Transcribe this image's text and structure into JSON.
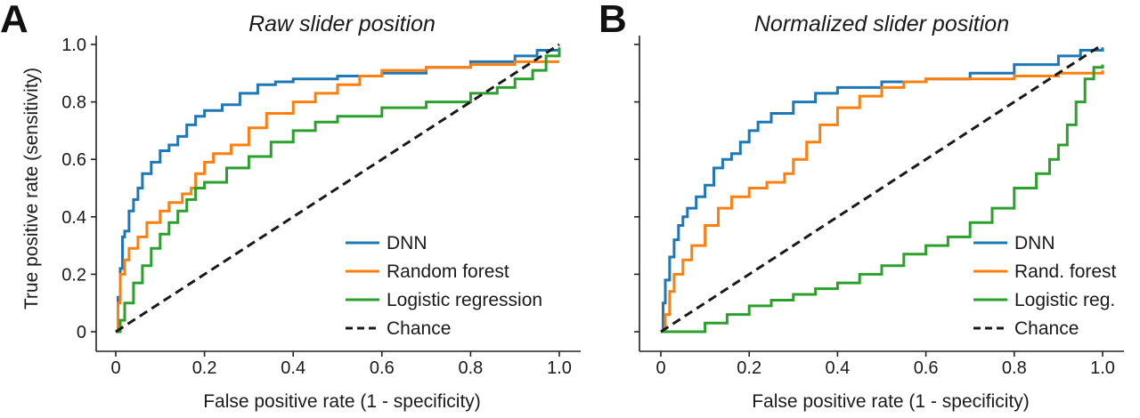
{
  "chart_data": [
    {
      "type": "line",
      "panel_letter": "A",
      "title": "Raw slider position",
      "xlabel": "False positive rate (1 - specificity)",
      "ylabel": "True positive rate (sensitivity)",
      "xlim": [
        0,
        1
      ],
      "ylim": [
        0,
        1
      ],
      "xticks": [
        0,
        0.2,
        0.4,
        0.6,
        0.8,
        1.0
      ],
      "xtick_labels": [
        "0",
        "0.2",
        "0.4",
        "0.6",
        "0.8",
        "1.0"
      ],
      "yticks": [
        0,
        0.2,
        0.4,
        0.6,
        0.8,
        1.0
      ],
      "ytick_labels": [
        "0",
        "0.2",
        "0.4",
        "0.6",
        "0.8",
        "1.0"
      ],
      "grid": false,
      "legend_position": "bottom-right",
      "series": [
        {
          "name": "DNN",
          "color": "#1f77b4",
          "dash": "solid",
          "x": [
            0,
            0.005,
            0.01,
            0.015,
            0.02,
            0.03,
            0.04,
            0.05,
            0.06,
            0.08,
            0.1,
            0.12,
            0.14,
            0.16,
            0.18,
            0.2,
            0.24,
            0.28,
            0.32,
            0.36,
            0.4,
            0.5,
            0.6,
            0.7,
            0.8,
            0.9,
            0.95,
            1.0
          ],
          "y": [
            0,
            0.12,
            0.22,
            0.33,
            0.35,
            0.42,
            0.46,
            0.5,
            0.55,
            0.59,
            0.63,
            0.65,
            0.68,
            0.72,
            0.75,
            0.77,
            0.79,
            0.83,
            0.86,
            0.87,
            0.88,
            0.89,
            0.9,
            0.92,
            0.94,
            0.96,
            0.98,
            0.98
          ]
        },
        {
          "name": "Random forest",
          "color": "#ff7f0e",
          "dash": "solid",
          "x": [
            0,
            0.005,
            0.01,
            0.02,
            0.03,
            0.05,
            0.07,
            0.1,
            0.12,
            0.15,
            0.17,
            0.18,
            0.2,
            0.22,
            0.26,
            0.3,
            0.34,
            0.4,
            0.45,
            0.5,
            0.55,
            0.6,
            0.7,
            0.8,
            0.9,
            1.0
          ],
          "y": [
            0,
            0.1,
            0.2,
            0.25,
            0.29,
            0.33,
            0.38,
            0.42,
            0.45,
            0.48,
            0.5,
            0.55,
            0.59,
            0.62,
            0.65,
            0.71,
            0.76,
            0.8,
            0.83,
            0.86,
            0.89,
            0.91,
            0.92,
            0.93,
            0.94,
            0.94
          ]
        },
        {
          "name": "Logistic regression",
          "color": "#2ca02c",
          "dash": "solid",
          "x": [
            0,
            0.01,
            0.02,
            0.04,
            0.06,
            0.08,
            0.1,
            0.12,
            0.14,
            0.16,
            0.18,
            0.2,
            0.25,
            0.3,
            0.35,
            0.4,
            0.45,
            0.5,
            0.6,
            0.7,
            0.8,
            0.86,
            0.9,
            0.94,
            0.97,
            1.0
          ],
          "y": [
            0,
            0.04,
            0.1,
            0.17,
            0.23,
            0.29,
            0.34,
            0.38,
            0.42,
            0.46,
            0.5,
            0.52,
            0.57,
            0.61,
            0.66,
            0.7,
            0.73,
            0.75,
            0.78,
            0.8,
            0.83,
            0.85,
            0.88,
            0.91,
            0.96,
            0.99
          ]
        },
        {
          "name": "Chance",
          "color": "#1a1a1a",
          "dash": "dashed",
          "x": [
            0,
            1
          ],
          "y": [
            0,
            1
          ]
        }
      ]
    },
    {
      "type": "line",
      "panel_letter": "B",
      "title": "Normalized slider position",
      "xlabel": "False positive rate (1 - specificity)",
      "ylabel": "",
      "xlim": [
        0,
        1
      ],
      "ylim": [
        0,
        1
      ],
      "xticks": [
        0,
        0.2,
        0.4,
        0.6,
        0.8,
        1.0
      ],
      "xtick_labels": [
        "0",
        "0.2",
        "0.4",
        "0.6",
        "0.8",
        "1.0"
      ],
      "yticks": [
        0,
        0.2,
        0.4,
        0.6,
        0.8,
        1.0
      ],
      "ytick_labels": [],
      "grid": false,
      "legend_position": "bottom-right",
      "series": [
        {
          "name": "DNN",
          "color": "#1f77b4",
          "dash": "solid",
          "x": [
            0,
            0.005,
            0.01,
            0.02,
            0.03,
            0.04,
            0.05,
            0.06,
            0.08,
            0.1,
            0.12,
            0.14,
            0.16,
            0.18,
            0.2,
            0.22,
            0.25,
            0.3,
            0.35,
            0.4,
            0.5,
            0.6,
            0.7,
            0.8,
            0.9,
            0.95,
            1.0
          ],
          "y": [
            0,
            0.1,
            0.18,
            0.26,
            0.32,
            0.37,
            0.4,
            0.43,
            0.47,
            0.51,
            0.57,
            0.6,
            0.62,
            0.66,
            0.7,
            0.73,
            0.76,
            0.8,
            0.83,
            0.85,
            0.87,
            0.88,
            0.9,
            0.93,
            0.96,
            0.98,
            0.99
          ]
        },
        {
          "name": "Rand. forest",
          "color": "#ff7f0e",
          "dash": "solid",
          "x": [
            0,
            0.01,
            0.02,
            0.03,
            0.05,
            0.07,
            0.1,
            0.13,
            0.16,
            0.2,
            0.24,
            0.28,
            0.3,
            0.33,
            0.36,
            0.4,
            0.45,
            0.5,
            0.55,
            0.6,
            0.7,
            0.8,
            0.9,
            1.0
          ],
          "y": [
            0,
            0.06,
            0.14,
            0.2,
            0.25,
            0.3,
            0.37,
            0.43,
            0.47,
            0.5,
            0.52,
            0.55,
            0.6,
            0.66,
            0.72,
            0.78,
            0.82,
            0.85,
            0.87,
            0.88,
            0.88,
            0.89,
            0.9,
            0.91
          ]
        },
        {
          "name": "Logistic reg.",
          "color": "#2ca02c",
          "dash": "solid",
          "x": [
            0,
            0.05,
            0.1,
            0.15,
            0.2,
            0.25,
            0.3,
            0.35,
            0.4,
            0.45,
            0.5,
            0.55,
            0.6,
            0.65,
            0.7,
            0.75,
            0.8,
            0.85,
            0.88,
            0.9,
            0.92,
            0.94,
            0.96,
            0.98,
            1.0
          ],
          "y": [
            0,
            0.0,
            0.03,
            0.06,
            0.09,
            0.11,
            0.13,
            0.15,
            0.17,
            0.2,
            0.23,
            0.27,
            0.3,
            0.33,
            0.38,
            0.43,
            0.5,
            0.55,
            0.6,
            0.65,
            0.72,
            0.8,
            0.88,
            0.92,
            0.93
          ]
        },
        {
          "name": "Chance",
          "color": "#1a1a1a",
          "dash": "dashed",
          "x": [
            0,
            1
          ],
          "y": [
            0,
            1
          ]
        }
      ]
    }
  ]
}
